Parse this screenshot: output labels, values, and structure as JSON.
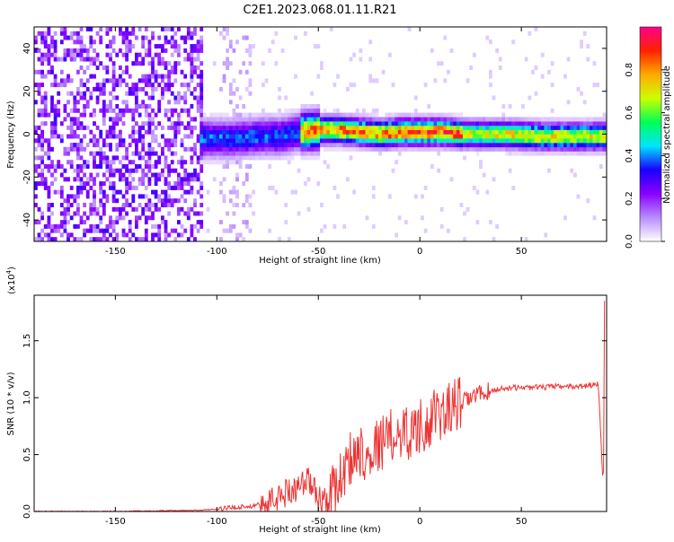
{
  "title": "C2E1.2023.068.01.11.R21",
  "chart_data": [
    {
      "type": "heatmap",
      "xlabel": "Height of straight line (km)",
      "ylabel": "Frequency (Hz)",
      "xlim": [
        -190,
        92
      ],
      "ylim": [
        -50,
        50
      ],
      "x_ticks": [
        -150,
        -100,
        -50,
        0,
        50
      ],
      "y_ticks": [
        -40,
        -20,
        0,
        20,
        40
      ],
      "grid": false,
      "ridge": {
        "x": [
          -105,
          -90,
          -80,
          -70,
          -60,
          -50,
          -40,
          -30,
          -20,
          -10,
          0,
          10,
          20,
          40,
          60,
          80,
          90
        ],
        "y": [
          -3,
          -3,
          -2,
          -2,
          0,
          1,
          1,
          0,
          -1,
          0,
          0,
          0,
          -1,
          -1,
          -2,
          -2,
          -2
        ]
      },
      "noise_region": [
        -190,
        -107
      ],
      "colorbar": {
        "label": "Normalized spectral amplitude",
        "range": [
          0,
          1
        ],
        "ticks": [
          0.0,
          0.2,
          0.4,
          0.6,
          0.8
        ],
        "colors": [
          "#ffffff",
          "#b98cff",
          "#8a00ff",
          "#1a00ff",
          "#00e5ff",
          "#00ff55",
          "#ccff00",
          "#ffaa00",
          "#ff2200",
          "#ff0088"
        ]
      }
    },
    {
      "type": "line",
      "xlabel": "Height of straight line (km)",
      "ylabel": "SNR (10 * v/v)",
      "y_multiplier": "(x10",
      "y_multiplier_exp": "4",
      "y_multiplier_close": ")",
      "xlim": [
        -190,
        92
      ],
      "ylim": [
        0,
        1.9
      ],
      "x_ticks": [
        -150,
        -100,
        -50,
        0,
        50
      ],
      "y_ticks": [
        0.0,
        0.5,
        1.0,
        1.5
      ],
      "color": "#ee3333",
      "series": [
        {
          "x": [
            -190,
            -150,
            -110,
            -100,
            -90,
            -80,
            -75,
            -70,
            -65,
            -60,
            -55,
            -50,
            -45,
            -40,
            -35,
            -30,
            -25,
            -20,
            -15,
            -10,
            -5,
            0,
            5,
            10,
            15,
            20,
            25,
            30,
            35,
            40,
            50,
            60,
            70,
            80,
            88,
            90,
            91
          ],
          "y": [
            0.0,
            0.0,
            0.01,
            0.02,
            0.04,
            0.05,
            0.08,
            0.12,
            0.18,
            0.22,
            0.28,
            0.12,
            0.1,
            0.25,
            0.45,
            0.55,
            0.5,
            0.6,
            0.65,
            0.7,
            0.7,
            0.75,
            0.8,
            0.85,
            0.9,
            0.95,
            1.0,
            1.04,
            1.06,
            1.08,
            1.09,
            1.09,
            1.1,
            1.1,
            1.12,
            0.3,
            1.85
          ]
        }
      ]
    }
  ]
}
